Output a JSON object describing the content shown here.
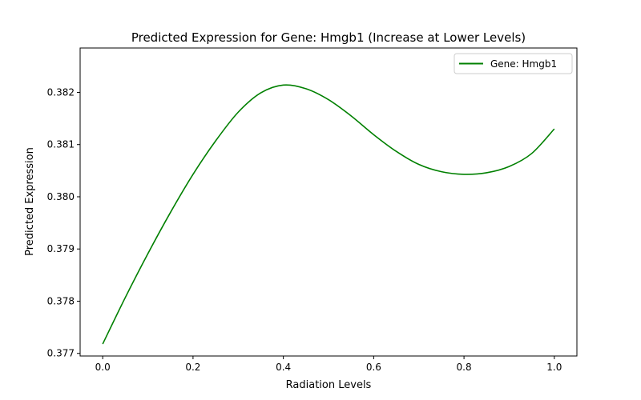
{
  "chart_data": {
    "type": "line",
    "title": "Predicted Expression for Gene: Hmgb1 (Increase at Lower Levels)",
    "xlabel": "Radiation Levels",
    "ylabel": "Predicted Expression",
    "xlim": [
      -0.05,
      1.05
    ],
    "ylim": [
      0.37695,
      0.38285
    ],
    "xticks": [
      0.0,
      0.2,
      0.4,
      0.6,
      0.8,
      1.0
    ],
    "xtick_labels": [
      "0.0",
      "0.2",
      "0.4",
      "0.6",
      "0.8",
      "1.0"
    ],
    "yticks": [
      0.377,
      0.378,
      0.379,
      0.38,
      0.381,
      0.382
    ],
    "ytick_labels": [
      "0.377",
      "0.378",
      "0.379",
      "0.380",
      "0.381",
      "0.382"
    ],
    "grid": false,
    "legend": {
      "position": "top-right"
    },
    "series": [
      {
        "name": "Gene: Hmgb1",
        "color": "#008000",
        "x": [
          0.0,
          0.05,
          0.1,
          0.15,
          0.2,
          0.25,
          0.3,
          0.35,
          0.4,
          0.45,
          0.5,
          0.55,
          0.6,
          0.65,
          0.7,
          0.75,
          0.8,
          0.85,
          0.9,
          0.95,
          1.0
        ],
        "y": [
          0.37718,
          0.37807,
          0.37891,
          0.3797,
          0.38043,
          0.38107,
          0.38162,
          0.38199,
          0.38214,
          0.38207,
          0.38186,
          0.38155,
          0.38119,
          0.38087,
          0.38062,
          0.38048,
          0.38043,
          0.38046,
          0.38058,
          0.38083,
          0.3813
        ]
      }
    ]
  }
}
